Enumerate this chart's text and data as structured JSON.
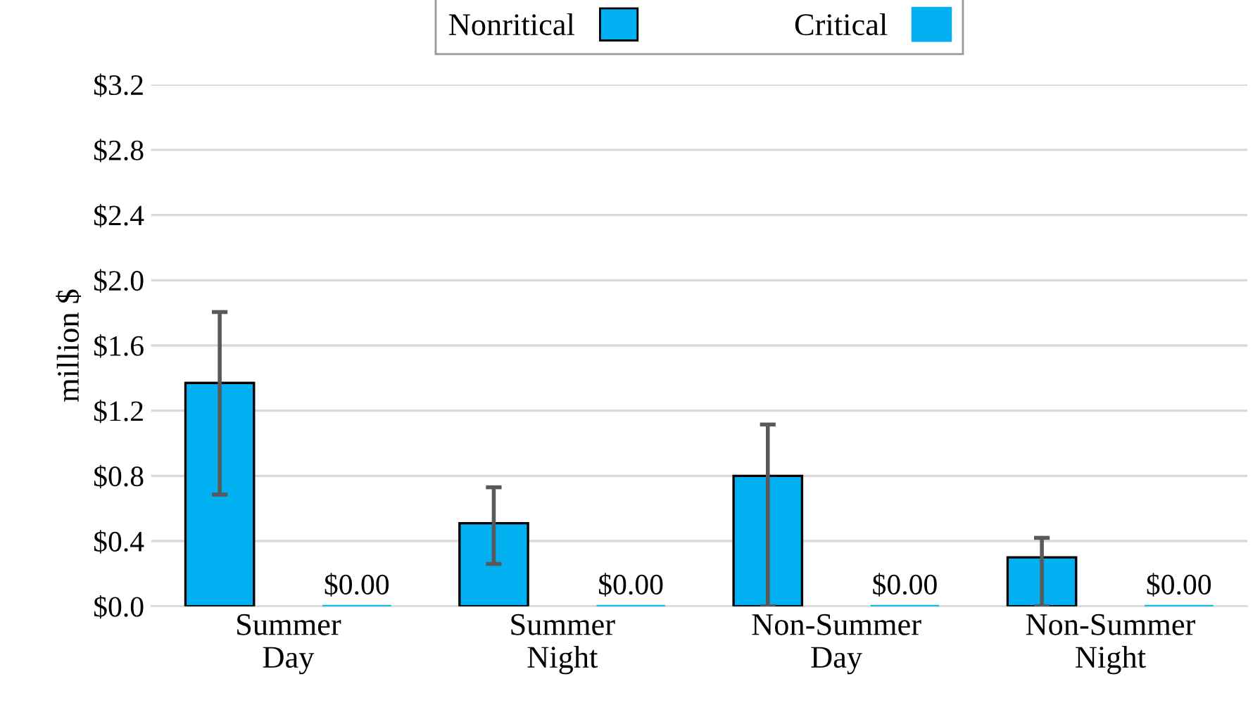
{
  "chart_data": {
    "type": "bar",
    "ylabel": "million $",
    "categories": [
      "Summer\nDay",
      "Summer\nNight",
      "Non-Summer\nDay",
      "Non-Summer\nNight"
    ],
    "series": [
      {
        "name": "Nonritical",
        "color": "#00b0f0",
        "values": [
          1.37,
          0.51,
          0.8,
          0.3
        ],
        "errors": [
          [
            0.685,
            1.805
          ],
          [
            0.26,
            0.73
          ],
          [
            0.0,
            1.115
          ],
          [
            0.0,
            0.42
          ]
        ]
      },
      {
        "name": "Critical",
        "color": "#00b0f0",
        "values": [
          0,
          0,
          0,
          0
        ],
        "value_labels": [
          "$0.00",
          "$0.00",
          "$0.00",
          "$0.00"
        ]
      }
    ],
    "ylim": [
      0,
      3.2
    ],
    "yticks": [
      {
        "value": 0,
        "label": "$0.0"
      },
      {
        "value": 0.4,
        "label": "$0.4"
      },
      {
        "value": 0.8,
        "label": "$0.8"
      },
      {
        "value": 1.2,
        "label": "$1.2"
      },
      {
        "value": 1.6,
        "label": "$1.6"
      },
      {
        "value": 2.0,
        "label": "$2.0"
      },
      {
        "value": 2.4,
        "label": "$2.4"
      },
      {
        "value": 2.8,
        "label": "$2.8"
      },
      {
        "value": 3.2,
        "label": "$3.2"
      }
    ],
    "grid": "y",
    "legend": "top"
  }
}
